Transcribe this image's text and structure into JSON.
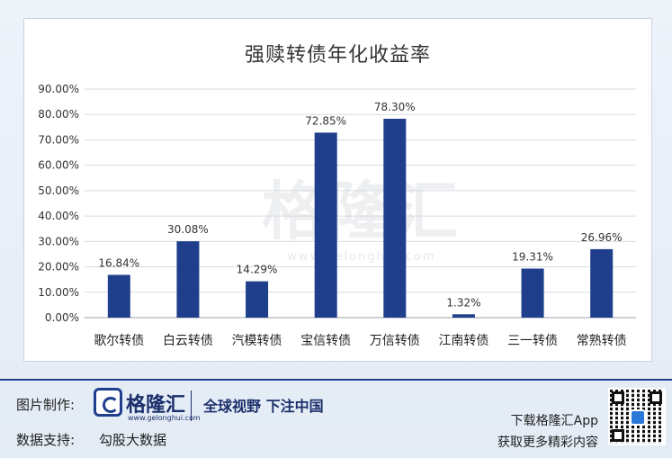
{
  "chart_data": {
    "type": "bar",
    "title": "强赎转债年化收益率",
    "categories": [
      "歌尔转债",
      "白云转债",
      "汽模转债",
      "宝信转债",
      "万信转债",
      "江南转债",
      "三一转债",
      "常熟转债"
    ],
    "values": [
      16.84,
      30.08,
      14.29,
      72.85,
      78.3,
      1.32,
      19.31,
      26.96
    ],
    "data_labels": [
      "16.84%",
      "30.08%",
      "14.29%",
      "72.85%",
      "78.30%",
      "1.32%",
      "19.31%",
      "26.96%"
    ],
    "y_ticks": [
      "0.00%",
      "10.00%",
      "20.00%",
      "30.00%",
      "40.00%",
      "50.00%",
      "60.00%",
      "70.00%",
      "80.00%",
      "90.00%"
    ],
    "ylim": [
      0,
      90
    ],
    "grid": true,
    "legend": "none",
    "bar_color": "#1f3f8c"
  },
  "watermark": {
    "text": "格隆汇",
    "url": "www.gelonghui.com"
  },
  "footer": {
    "image_credit_label": "图片制作:",
    "brand_name": "格隆汇",
    "brand_url": "www.gelonghui.com",
    "slogan": "全球视野 下注中国",
    "data_support_label": "数据支持:",
    "data_support_value": "勾股大数据",
    "app_download": "下载格隆汇App",
    "app_more": "获取更多精彩内容"
  }
}
